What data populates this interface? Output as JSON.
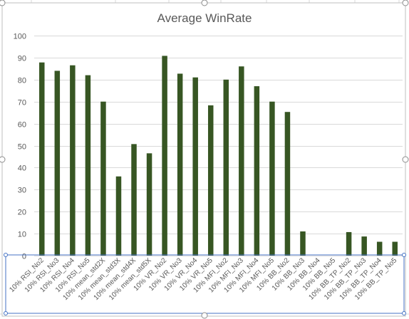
{
  "colors": {
    "bar": "#375623",
    "chart_border": "#bfbfbf",
    "selection": "#4472c4",
    "handle_fill": "#ffffff"
  },
  "chart_data": {
    "type": "bar",
    "title": "Average WinRate",
    "xlabel": "",
    "ylabel": "",
    "ylim": [
      0,
      100
    ],
    "yticks": [
      0,
      10,
      20,
      30,
      40,
      50,
      60,
      70,
      80,
      90,
      100
    ],
    "grid": true,
    "legend": "none",
    "categories": [
      "10% RSI_No2",
      "10% RSI_No3",
      "10% RSI_No4",
      "10% RSI_No5",
      "10% mean_std2X",
      "10% mean_std3X",
      "10% mean_std4X",
      "10% mean_std5X",
      "10% VR_No2",
      "10% VR_No3",
      "10% VR_No4",
      "10% VR_No5",
      "10% MFI_No2",
      "10% MFI_No3",
      "10% MFI_No4",
      "10% MFI_No5",
      "10% BB_No2",
      "10% BB_No3",
      "10% BB_No4",
      "10% BB_No5",
      "10% BB_TP_No2",
      "10% BB_TP_No3",
      "10% BB_TP_No4",
      "10% BB_TP_No5"
    ],
    "values": [
      87.8,
      84.0,
      86.5,
      82.0,
      70.0,
      36.0,
      50.7,
      46.5,
      90.8,
      82.7,
      81.0,
      68.3,
      80.0,
      86.0,
      77.0,
      70.0,
      65.3,
      11.0,
      0,
      0,
      10.7,
      8.7,
      6.3,
      6.3
    ]
  }
}
